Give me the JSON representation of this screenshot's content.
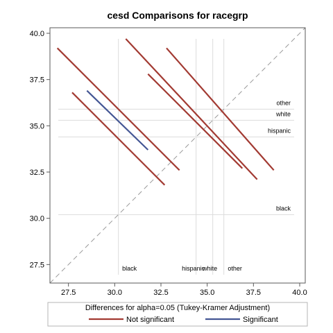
{
  "chart_data": {
    "type": "line",
    "title": "cesd Comparisons for racegrp",
    "xlim": [
      26.5,
      40.3
    ],
    "ylim": [
      26.5,
      40.3
    ],
    "x_ticks": [
      "27.5",
      "30.0",
      "32.5",
      "35.0",
      "37.5",
      "40.0"
    ],
    "y_ticks": [
      "27.5",
      "30.0",
      "32.5",
      "35.0",
      "37.5",
      "40.0"
    ],
    "x_tick_values": [
      27.5,
      30.0,
      32.5,
      35.0,
      37.5,
      40.0
    ],
    "y_tick_values": [
      27.5,
      30.0,
      32.5,
      35.0,
      37.5,
      40.0
    ],
    "group_means": [
      {
        "label": "black",
        "value": 30.2
      },
      {
        "label": "hispanic",
        "value": 34.4
      },
      {
        "label": "white",
        "value": 35.3
      },
      {
        "label": "other",
        "value": 35.9
      }
    ],
    "reference_line": {
      "style": "dashed",
      "x": [
        26.5,
        40.3
      ],
      "y": [
        26.5,
        40.3
      ]
    },
    "series": [
      {
        "name": "Not significant",
        "color": "#a23a32",
        "segments": [
          {
            "x1": 26.9,
            "y1": 39.2,
            "x2": 33.5,
            "y2": 32.6
          },
          {
            "x1": 27.7,
            "y1": 36.8,
            "x2": 32.7,
            "y2": 31.8
          },
          {
            "x1": 30.6,
            "y1": 39.7,
            "x2": 37.7,
            "y2": 32.1
          },
          {
            "x1": 31.8,
            "y1": 37.8,
            "x2": 36.9,
            "y2": 32.7
          },
          {
            "x1": 32.8,
            "y1": 39.2,
            "x2": 38.6,
            "y2": 32.6
          }
        ]
      },
      {
        "name": "Significant",
        "color": "#445694",
        "segments": [
          {
            "x1": 28.5,
            "y1": 36.9,
            "x2": 31.8,
            "y2": 33.7
          }
        ]
      }
    ],
    "legend": {
      "title": "Differences for alpha=0.05 (Tukey-Kramer Adjustment)",
      "position": "bottom",
      "items": [
        {
          "label": "Not significant",
          "color": "#a23a32"
        },
        {
          "label": "Significant",
          "color": "#445694"
        }
      ]
    },
    "grid": false
  }
}
